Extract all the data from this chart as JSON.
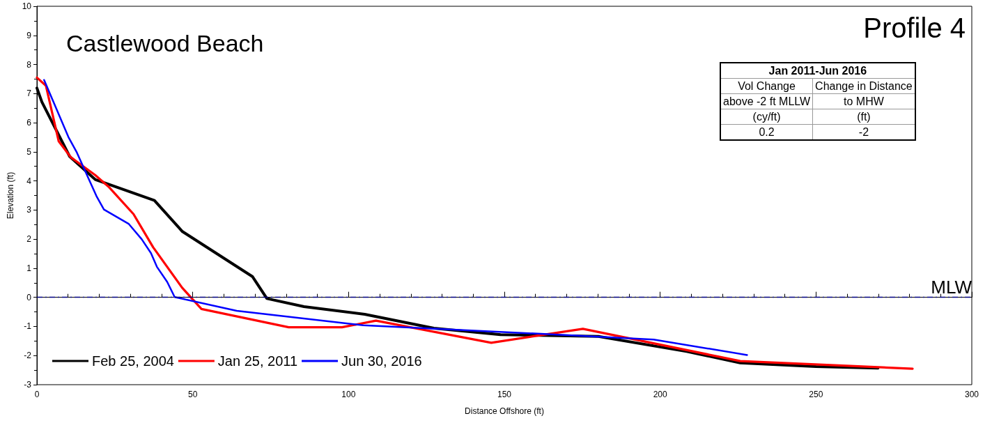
{
  "chart_data": {
    "type": "line",
    "title": "Castlewood Beach",
    "xlabel": "Distance Offshore (ft)",
    "ylabel": "Elevation (ft)",
    "annotations": [
      "Profile 4",
      "Jan 2011-Jun 2016",
      "Vol Change",
      "Change in Distance",
      "above -2 ft MLLW",
      "to MHW",
      "(cy/ft)",
      "(ft)",
      "0.2",
      "-2"
    ],
    "xlim": [
      0,
      300
    ],
    "xticks": [
      0,
      50,
      100,
      150,
      200,
      250,
      300
    ],
    "ylim": [
      -3,
      10
    ],
    "yticks": [
      -3,
      -2,
      -1,
      0,
      1,
      2,
      3,
      4,
      5,
      6,
      7,
      8,
      9,
      10
    ],
    "grid": false,
    "legend": "bottom left",
    "marker": "none",
    "line_style": "solid",
    "ref_lines": [
      {
        "axis": "y",
        "value": 0,
        "label": "MLW",
        "color": "#000080",
        "line_style": "dashed"
      }
    ],
    "series": [
      {
        "name": "Feb 25, 2004",
        "color": "#000000",
        "x": [
          0,
          1.6,
          10.5,
          18.7,
          37.7,
          46.7,
          69.2,
          73.8,
          85.7,
          105.2,
          127.4,
          148.8,
          180.2,
          208.5,
          225.7,
          250,
          269.9
        ],
        "values": [
          7.19,
          6.71,
          4.84,
          4.05,
          3.33,
          2.26,
          0.71,
          -0.04,
          -0.32,
          -0.58,
          -1.06,
          -1.28,
          -1.34,
          -1.86,
          -2.25,
          -2.38,
          -2.43
        ]
      },
      {
        "name": "Jan 25, 2011",
        "color": "#ff0000",
        "x": [
          0,
          2.9,
          7,
          10.9,
          18.7,
          23.2,
          31,
          37.3,
          46.6,
          52.8,
          80.8,
          97.9,
          108.8,
          145.8,
          175.2,
          225.7,
          281
        ],
        "values": [
          7.55,
          7.27,
          5.36,
          4.81,
          4.2,
          3.78,
          2.86,
          1.72,
          0.33,
          -0.4,
          -1.03,
          -1.03,
          -0.8,
          -1.56,
          -1.08,
          -2.19,
          -2.45
        ]
      },
      {
        "name": "Jun 30, 2016",
        "color": "#0000ff",
        "x": [
          2.3,
          10.1,
          12.7,
          19.1,
          21.5,
          29.5,
          33.6,
          36.6,
          38.5,
          41.8,
          44.2,
          64.1,
          104.7,
          167.2,
          197.9,
          227.9
        ],
        "values": [
          7.47,
          5.51,
          5.0,
          3.48,
          3.02,
          2.52,
          2.0,
          1.52,
          1.05,
          0.53,
          0.01,
          -0.46,
          -0.96,
          -1.28,
          -1.45,
          -1.98
        ]
      }
    ]
  }
}
